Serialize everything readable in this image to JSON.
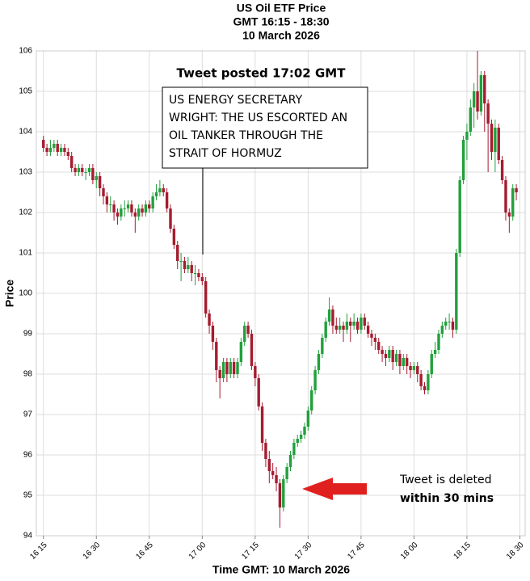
{
  "chart_data": {
    "type": "candlestick",
    "title": [
      "US Oil ETF Price",
      "GMT 16:15 - 18:30",
      "10 March 2026"
    ],
    "x_label": "Time GMT: 10 March 2026",
    "y_label": "Price",
    "up_color": "#22a03c",
    "down_color": "#a51c30",
    "grid": true,
    "xlim": [
      973,
      1111.5
    ],
    "ylim": [
      94,
      106
    ],
    "yticks": [
      94,
      95,
      96,
      97,
      98,
      99,
      100,
      101,
      102,
      103,
      104,
      105,
      106
    ],
    "xticks": [
      {
        "value": 975,
        "label": "16 15"
      },
      {
        "value": 990,
        "label": "16 30"
      },
      {
        "value": 1005,
        "label": "16 45"
      },
      {
        "value": 1020,
        "label": "17 00"
      },
      {
        "value": 1035,
        "label": "17 15"
      },
      {
        "value": 1050,
        "label": "17 30"
      },
      {
        "value": 1065,
        "label": "17 45"
      },
      {
        "value": 1080,
        "label": "18 00"
      },
      {
        "value": 1095,
        "label": "18 15"
      },
      {
        "value": 1110,
        "label": "18 30"
      }
    ],
    "x": [
      975,
      976,
      977,
      978,
      979,
      980,
      981,
      982,
      983,
      984,
      985,
      986,
      987,
      988,
      989,
      990,
      991,
      992,
      993,
      994,
      995,
      996,
      997,
      998,
      999,
      1000,
      1001,
      1002,
      1003,
      1004,
      1005,
      1006,
      1007,
      1008,
      1009,
      1010,
      1011,
      1012,
      1013,
      1014,
      1015,
      1016,
      1017,
      1018,
      1019,
      1020,
      1021,
      1022,
      1023,
      1024,
      1025,
      1026,
      1027,
      1028,
      1029,
      1030,
      1031,
      1032,
      1033,
      1034,
      1035,
      1036,
      1037,
      1038,
      1039,
      1040,
      1041,
      1042,
      1043,
      1044,
      1045,
      1046,
      1047,
      1048,
      1049,
      1050,
      1051,
      1052,
      1053,
      1054,
      1055,
      1056,
      1057,
      1058,
      1059,
      1060,
      1061,
      1062,
      1063,
      1064,
      1065,
      1066,
      1067,
      1068,
      1069,
      1070,
      1071,
      1072,
      1073,
      1074,
      1075,
      1076,
      1077,
      1078,
      1079,
      1080,
      1081,
      1082,
      1083,
      1084,
      1085,
      1086,
      1087,
      1088,
      1089,
      1090,
      1091,
      1092,
      1093,
      1094,
      1095,
      1096,
      1097,
      1098,
      1099,
      1100,
      1101,
      1102,
      1103,
      1104,
      1105,
      1106,
      1107,
      1108,
      1109
    ],
    "open": [
      103.8,
      103.6,
      103.5,
      103.6,
      103.7,
      103.5,
      103.6,
      103.5,
      103.4,
      103.1,
      103.0,
      103.1,
      103.0,
      103.0,
      103.1,
      102.8,
      102.9,
      102.6,
      102.4,
      102.2,
      102.2,
      102.0,
      101.9,
      102.1,
      102.1,
      102.2,
      102.0,
      101.9,
      102.1,
      102.0,
      102.2,
      102.1,
      102.4,
      102.5,
      102.6,
      102.5,
      102.1,
      101.6,
      101.2,
      100.8,
      100.8,
      100.6,
      100.7,
      100.5,
      100.5,
      100.4,
      100.3,
      99.5,
      99.2,
      98.8,
      98.1,
      97.9,
      98.3,
      98.0,
      98.3,
      98.0,
      98.3,
      98.8,
      99.2,
      99.0,
      98.2,
      97.9,
      97.2,
      96.3,
      95.9,
      95.6,
      95.5,
      95.3,
      94.7,
      95.4,
      95.7,
      96.0,
      96.3,
      96.4,
      96.5,
      96.7,
      97.1,
      97.6,
      98.1,
      98.5,
      98.9,
      99.3,
      99.6,
      99.2,
      99.1,
      99.2,
      99.1,
      99.3,
      99.2,
      99.3,
      99.1,
      99.4,
      99.2,
      99.0,
      98.9,
      98.8,
      98.6,
      98.5,
      98.4,
      98.6,
      98.3,
      98.5,
      98.2,
      98.4,
      98.2,
      98.1,
      98.2,
      98.0,
      97.7,
      97.6,
      98.0,
      98.5,
      98.6,
      99.0,
      99.2,
      99.3,
      99.3,
      99.1,
      101.0,
      102.8,
      103.8,
      104.0,
      104.6,
      105.0,
      104.5,
      105.4,
      104.7,
      104.2,
      103.5,
      104.1,
      103.3,
      102.8,
      102.0,
      101.9,
      102.6
    ],
    "high": [
      103.9,
      103.7,
      103.8,
      103.8,
      103.8,
      103.7,
      103.7,
      103.6,
      103.5,
      103.2,
      103.2,
      103.2,
      103.1,
      103.2,
      103.2,
      103.0,
      103.0,
      102.7,
      102.5,
      102.4,
      102.3,
      102.1,
      102.2,
      102.3,
      102.3,
      102.3,
      102.1,
      102.2,
      102.2,
      102.3,
      102.3,
      102.5,
      102.7,
      102.8,
      102.7,
      102.6,
      102.2,
      101.7,
      101.3,
      101.0,
      100.9,
      100.9,
      100.8,
      100.7,
      100.6,
      100.5,
      100.4,
      99.6,
      99.3,
      98.9,
      98.2,
      98.4,
      98.4,
      98.4,
      98.4,
      98.4,
      98.9,
      99.3,
      99.3,
      99.1,
      98.3,
      98.0,
      97.3,
      96.4,
      96.1,
      95.8,
      95.7,
      95.4,
      95.5,
      95.8,
      96.1,
      96.4,
      96.5,
      96.6,
      96.8,
      97.2,
      97.7,
      98.2,
      98.6,
      99.0,
      99.4,
      99.9,
      99.7,
      99.4,
      99.4,
      99.3,
      99.5,
      99.4,
      99.5,
      99.4,
      99.5,
      99.5,
      99.3,
      99.1,
      99.0,
      98.9,
      98.7,
      98.6,
      98.7,
      98.7,
      98.6,
      98.6,
      98.5,
      98.5,
      98.3,
      98.3,
      98.3,
      98.1,
      97.8,
      98.1,
      98.6,
      98.8,
      99.1,
      99.3,
      99.4,
      99.5,
      99.4,
      101.1,
      102.9,
      103.9,
      104.2,
      104.8,
      105.2,
      106.0,
      105.5,
      105.5,
      104.8,
      104.3,
      104.3,
      104.2,
      103.4,
      102.9,
      102.1,
      102.7,
      102.7
    ],
    "low": [
      103.5,
      103.4,
      103.4,
      103.5,
      103.4,
      103.4,
      103.4,
      103.3,
      103.0,
      102.9,
      102.9,
      102.9,
      102.8,
      102.9,
      102.7,
      102.6,
      102.4,
      102.2,
      102.0,
      102.0,
      101.8,
      101.7,
      101.8,
      101.9,
      102.0,
      101.9,
      101.5,
      101.8,
      101.9,
      101.9,
      102.0,
      102.0,
      102.3,
      102.4,
      102.4,
      102.0,
      101.5,
      101.1,
      100.6,
      100.3,
      100.5,
      100.5,
      100.3,
      100.2,
      100.3,
      100.2,
      99.4,
      99.0,
      98.6,
      97.8,
      97.4,
      97.8,
      97.8,
      97.9,
      97.9,
      97.9,
      98.2,
      98.7,
      98.9,
      98.1,
      97.7,
      97.1,
      96.1,
      95.7,
      95.3,
      95.4,
      95.1,
      94.2,
      94.6,
      95.3,
      95.6,
      95.9,
      96.2,
      96.3,
      96.4,
      96.6,
      97.0,
      97.5,
      98.0,
      98.4,
      98.8,
      99.2,
      99.0,
      99.0,
      99.0,
      98.8,
      99.0,
      98.8,
      99.1,
      99.0,
      99.0,
      99.1,
      98.9,
      98.7,
      98.6,
      98.5,
      98.3,
      98.2,
      98.3,
      98.1,
      98.2,
      98.0,
      98.1,
      98.0,
      97.9,
      98.0,
      97.8,
      97.6,
      97.5,
      97.5,
      97.9,
      98.4,
      98.5,
      98.9,
      99.1,
      99.1,
      98.9,
      99.0,
      100.9,
      102.7,
      103.3,
      103.9,
      104.1,
      104.3,
      104.4,
      104.0,
      103.0,
      103.3,
      103.0,
      103.2,
      102.7,
      101.8,
      101.5,
      101.8,
      102.3
    ],
    "close": [
      103.6,
      103.5,
      103.6,
      103.7,
      103.5,
      103.6,
      103.5,
      103.4,
      103.1,
      103.0,
      103.1,
      103.0,
      103.0,
      103.1,
      102.8,
      102.9,
      102.6,
      102.4,
      102.2,
      102.2,
      102.0,
      101.9,
      102.1,
      102.1,
      102.2,
      102.0,
      101.9,
      102.1,
      102.0,
      102.2,
      102.1,
      102.4,
      102.5,
      102.6,
      102.5,
      102.1,
      101.6,
      101.2,
      100.8,
      100.8,
      100.6,
      100.7,
      100.5,
      100.5,
      100.4,
      100.3,
      99.5,
      99.2,
      98.8,
      98.1,
      97.9,
      98.3,
      98.0,
      98.3,
      98.0,
      98.3,
      98.8,
      99.2,
      99.0,
      98.2,
      97.9,
      97.2,
      96.3,
      95.9,
      95.6,
      95.5,
      95.3,
      94.7,
      95.4,
      95.7,
      96.0,
      96.3,
      96.4,
      96.5,
      96.7,
      97.1,
      97.6,
      98.1,
      98.5,
      98.9,
      99.3,
      99.6,
      99.2,
      99.1,
      99.2,
      99.1,
      99.3,
      99.2,
      99.3,
      99.1,
      99.4,
      99.2,
      99.0,
      98.9,
      98.8,
      98.6,
      98.5,
      98.4,
      98.6,
      98.3,
      98.5,
      98.2,
      98.4,
      98.2,
      98.1,
      98.2,
      98.0,
      97.7,
      97.6,
      98.0,
      98.5,
      98.6,
      99.0,
      99.2,
      99.3,
      99.3,
      99.1,
      101.0,
      102.8,
      103.8,
      104.0,
      104.6,
      105.0,
      104.5,
      105.4,
      104.7,
      104.2,
      103.5,
      104.1,
      103.3,
      102.8,
      102.0,
      101.9,
      102.6,
      102.5
    ],
    "annotations": {
      "tweet_posted": "Tweet posted 17:02 GMT",
      "tweet_text": [
        "US ENERGY SECRETARY",
        "WRIGHT: THE US ESCORTED AN",
        "OIL TANKER THROUGH THE",
        "STRAIT OF HORMUZ"
      ],
      "deleted": [
        "Tweet is deleted",
        "within 30 mins"
      ]
    }
  }
}
